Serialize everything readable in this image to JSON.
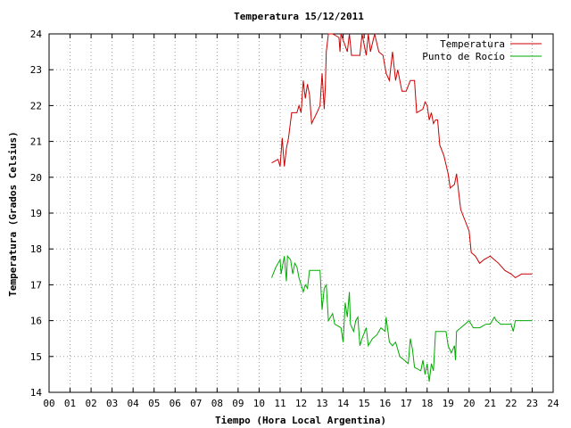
{
  "chart_data": {
    "type": "line",
    "title": "Temperatura 15/12/2011",
    "xlabel": "Tiempo (Hora Local Argentina)",
    "ylabel": "Temperatura (Grados Celsius)",
    "xlim": [
      0,
      24
    ],
    "ylim": [
      14,
      24
    ],
    "x_ticks": [
      "00",
      "01",
      "02",
      "03",
      "04",
      "05",
      "06",
      "07",
      "08",
      "09",
      "10",
      "11",
      "12",
      "13",
      "14",
      "15",
      "16",
      "17",
      "18",
      "19",
      "20",
      "21",
      "22",
      "23",
      "24"
    ],
    "y_ticks": [
      14,
      15,
      16,
      17,
      18,
      19,
      20,
      21,
      22,
      23,
      24
    ],
    "grid": true,
    "legend": "top-right",
    "series": [
      {
        "name": "Temperatura",
        "color": "#cc0000",
        "points": [
          [
            10.6,
            20.4
          ],
          [
            10.9,
            20.5
          ],
          [
            11.0,
            20.3
          ],
          [
            11.1,
            21.1
          ],
          [
            11.2,
            20.3
          ],
          [
            11.3,
            20.8
          ],
          [
            11.4,
            21.1
          ],
          [
            11.55,
            21.8
          ],
          [
            11.8,
            21.8
          ],
          [
            11.9,
            22.0
          ],
          [
            12.0,
            21.8
          ],
          [
            12.1,
            22.7
          ],
          [
            12.2,
            22.2
          ],
          [
            12.3,
            22.6
          ],
          [
            12.4,
            22.3
          ],
          [
            12.5,
            21.5
          ],
          [
            12.75,
            21.8
          ],
          [
            12.9,
            22.0
          ],
          [
            13.0,
            22.9
          ],
          [
            13.1,
            21.9
          ],
          [
            13.15,
            22.5
          ],
          [
            13.2,
            23.5
          ],
          [
            13.3,
            24.0
          ],
          [
            13.5,
            24.0
          ],
          [
            13.8,
            23.9
          ],
          [
            13.85,
            23.5
          ],
          [
            13.9,
            24.0
          ],
          [
            14.2,
            23.5
          ],
          [
            14.3,
            24.0
          ],
          [
            14.4,
            23.4
          ],
          [
            14.8,
            23.4
          ],
          [
            14.9,
            24.0
          ],
          [
            15.1,
            23.4
          ],
          [
            15.2,
            24.0
          ],
          [
            15.3,
            23.5
          ],
          [
            15.5,
            24.0
          ],
          [
            15.7,
            23.5
          ],
          [
            15.9,
            23.4
          ],
          [
            16.05,
            22.9
          ],
          [
            16.2,
            22.7
          ],
          [
            16.35,
            23.5
          ],
          [
            16.5,
            22.7
          ],
          [
            16.6,
            23.0
          ],
          [
            16.8,
            22.4
          ],
          [
            17.0,
            22.4
          ],
          [
            17.2,
            22.7
          ],
          [
            17.4,
            22.7
          ],
          [
            17.5,
            21.8
          ],
          [
            17.8,
            21.9
          ],
          [
            17.9,
            22.1
          ],
          [
            18.0,
            22.0
          ],
          [
            18.1,
            21.6
          ],
          [
            18.2,
            21.8
          ],
          [
            18.3,
            21.5
          ],
          [
            18.4,
            21.6
          ],
          [
            18.5,
            21.6
          ],
          [
            18.6,
            20.9
          ],
          [
            18.8,
            20.6
          ],
          [
            19.0,
            20.1
          ],
          [
            19.1,
            19.7
          ],
          [
            19.3,
            19.8
          ],
          [
            19.4,
            20.1
          ],
          [
            19.6,
            19.1
          ],
          [
            19.8,
            18.8
          ],
          [
            20.0,
            18.5
          ],
          [
            20.1,
            17.9
          ],
          [
            20.3,
            17.8
          ],
          [
            20.5,
            17.6
          ],
          [
            20.7,
            17.7
          ],
          [
            21.0,
            17.8
          ],
          [
            21.2,
            17.7
          ],
          [
            21.4,
            17.6
          ],
          [
            21.7,
            17.4
          ],
          [
            22.0,
            17.3
          ],
          [
            22.2,
            17.2
          ],
          [
            22.5,
            17.3
          ],
          [
            22.8,
            17.3
          ],
          [
            23.0,
            17.3
          ]
        ]
      },
      {
        "name": "Punto de Rocío",
        "color": "#00aa00",
        "points": [
          [
            10.6,
            17.2
          ],
          [
            10.8,
            17.5
          ],
          [
            11.0,
            17.7
          ],
          [
            11.05,
            17.3
          ],
          [
            11.2,
            17.8
          ],
          [
            11.3,
            17.1
          ],
          [
            11.35,
            17.8
          ],
          [
            11.5,
            17.7
          ],
          [
            11.6,
            17.3
          ],
          [
            11.7,
            17.6
          ],
          [
            11.8,
            17.5
          ],
          [
            11.9,
            17.2
          ],
          [
            12.0,
            17.0
          ],
          [
            12.1,
            16.8
          ],
          [
            12.2,
            17.0
          ],
          [
            12.3,
            16.9
          ],
          [
            12.4,
            17.4
          ],
          [
            12.9,
            17.4
          ],
          [
            13.0,
            16.3
          ],
          [
            13.1,
            16.9
          ],
          [
            13.2,
            17.0
          ],
          [
            13.3,
            16.0
          ],
          [
            13.5,
            16.2
          ],
          [
            13.6,
            15.9
          ],
          [
            13.9,
            15.8
          ],
          [
            14.0,
            15.4
          ],
          [
            14.1,
            16.5
          ],
          [
            14.2,
            16.1
          ],
          [
            14.3,
            16.8
          ],
          [
            14.35,
            15.9
          ],
          [
            14.5,
            15.7
          ],
          [
            14.6,
            16.0
          ],
          [
            14.7,
            16.1
          ],
          [
            14.8,
            15.3
          ],
          [
            14.9,
            15.5
          ],
          [
            15.1,
            15.8
          ],
          [
            15.2,
            15.3
          ],
          [
            15.4,
            15.5
          ],
          [
            15.6,
            15.6
          ],
          [
            15.8,
            15.8
          ],
          [
            16.0,
            15.7
          ],
          [
            16.05,
            16.1
          ],
          [
            16.2,
            15.4
          ],
          [
            16.35,
            15.3
          ],
          [
            16.5,
            15.4
          ],
          [
            16.6,
            15.2
          ],
          [
            16.7,
            15.0
          ],
          [
            16.9,
            14.9
          ],
          [
            17.1,
            14.8
          ],
          [
            17.2,
            15.5
          ],
          [
            17.3,
            15.2
          ],
          [
            17.4,
            14.7
          ],
          [
            17.7,
            14.6
          ],
          [
            17.8,
            14.9
          ],
          [
            17.9,
            14.5
          ],
          [
            18.0,
            14.8
          ],
          [
            18.1,
            14.3
          ],
          [
            18.2,
            14.8
          ],
          [
            18.3,
            14.6
          ],
          [
            18.4,
            15.7
          ],
          [
            18.9,
            15.7
          ],
          [
            19.0,
            15.3
          ],
          [
            19.15,
            15.1
          ],
          [
            19.3,
            15.3
          ],
          [
            19.35,
            14.9
          ],
          [
            19.4,
            15.7
          ],
          [
            19.6,
            15.8
          ],
          [
            19.8,
            15.9
          ],
          [
            20.0,
            16.0
          ],
          [
            20.2,
            15.8
          ],
          [
            20.5,
            15.8
          ],
          [
            20.8,
            15.9
          ],
          [
            21.0,
            15.9
          ],
          [
            21.2,
            16.1
          ],
          [
            21.3,
            16.0
          ],
          [
            21.5,
            15.9
          ],
          [
            21.8,
            15.9
          ],
          [
            22.0,
            15.9
          ],
          [
            22.1,
            15.7
          ],
          [
            22.2,
            16.0
          ],
          [
            22.5,
            16.0
          ],
          [
            22.7,
            16.0
          ],
          [
            23.0,
            16.0
          ]
        ]
      }
    ]
  }
}
